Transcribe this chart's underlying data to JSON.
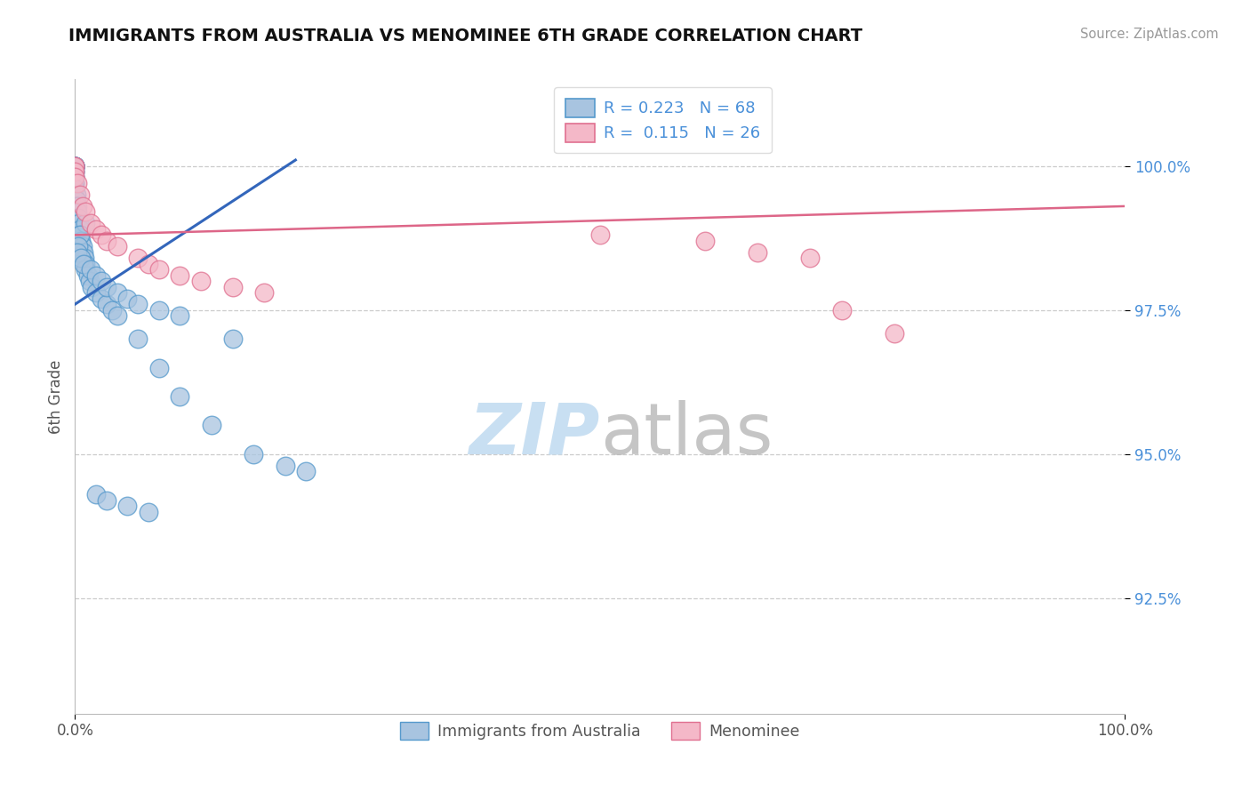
{
  "title": "IMMIGRANTS FROM AUSTRALIA VS MENOMINEE 6TH GRADE CORRELATION CHART",
  "source": "Source: ZipAtlas.com",
  "ylabel": "6th Grade",
  "yaxis_ticks": [
    "100.0%",
    "97.5%",
    "95.0%",
    "92.5%"
  ],
  "yaxis_values": [
    1.0,
    0.975,
    0.95,
    0.925
  ],
  "ylim_min": 0.905,
  "ylim_max": 1.015,
  "xlim_min": 0.0,
  "xlim_max": 1.0,
  "legend_label1": "Immigrants from Australia",
  "legend_label2": "Menominee",
  "legend_r1": "R = 0.223",
  "legend_n1": "N = 68",
  "legend_r2": "R =  0.115",
  "legend_n2": "N = 26",
  "color_blue_fill": "#a8c4e0",
  "color_blue_edge": "#5599cc",
  "color_pink_fill": "#f4b8c8",
  "color_pink_edge": "#e07090",
  "color_line_blue": "#3366bb",
  "color_line_pink": "#dd6688",
  "blue_line_x0": 0.0,
  "blue_line_y0": 0.976,
  "blue_line_x1": 0.21,
  "blue_line_y1": 1.001,
  "pink_line_x0": 0.0,
  "pink_line_y0": 0.988,
  "pink_line_x1": 1.0,
  "pink_line_y1": 0.993,
  "blue_dots_x": [
    0.0,
    0.0,
    0.0,
    0.0,
    0.0,
    0.0,
    0.0,
    0.0,
    0.0,
    0.0,
    0.0,
    0.0,
    0.0,
    0.0,
    0.0,
    0.0,
    0.0,
    0.0,
    0.001,
    0.001,
    0.001,
    0.002,
    0.002,
    0.003,
    0.004,
    0.005,
    0.005,
    0.006,
    0.007,
    0.008,
    0.009,
    0.01,
    0.01,
    0.012,
    0.014,
    0.016,
    0.02,
    0.025,
    0.03,
    0.035,
    0.04,
    0.06,
    0.08,
    0.1,
    0.13,
    0.17,
    0.2,
    0.22,
    0.01,
    0.005,
    0.003,
    0.002,
    0.006,
    0.008,
    0.015,
    0.02,
    0.025,
    0.03,
    0.04,
    0.05,
    0.06,
    0.08,
    0.1,
    0.15,
    0.02,
    0.03,
    0.05,
    0.07
  ],
  "blue_dots_y": [
    1.0,
    1.0,
    1.0,
    1.0,
    1.0,
    1.0,
    1.0,
    1.0,
    1.0,
    1.0,
    1.0,
    0.999,
    0.999,
    0.998,
    0.998,
    0.997,
    0.997,
    0.996,
    0.995,
    0.994,
    0.993,
    0.993,
    0.992,
    0.991,
    0.99,
    0.989,
    0.988,
    0.987,
    0.986,
    0.985,
    0.984,
    0.983,
    0.982,
    0.981,
    0.98,
    0.979,
    0.978,
    0.977,
    0.976,
    0.975,
    0.974,
    0.97,
    0.965,
    0.96,
    0.955,
    0.95,
    0.948,
    0.947,
    0.99,
    0.988,
    0.986,
    0.985,
    0.984,
    0.983,
    0.982,
    0.981,
    0.98,
    0.979,
    0.978,
    0.977,
    0.976,
    0.975,
    0.974,
    0.97,
    0.943,
    0.942,
    0.941,
    0.94
  ],
  "pink_dots_x": [
    0.0,
    0.0,
    0.0,
    0.0,
    0.002,
    0.005,
    0.007,
    0.01,
    0.015,
    0.02,
    0.025,
    0.03,
    0.04,
    0.06,
    0.07,
    0.08,
    0.1,
    0.12,
    0.15,
    0.18,
    0.5,
    0.6,
    0.65,
    0.7,
    0.73,
    0.78
  ],
  "pink_dots_y": [
    1.0,
    1.0,
    0.999,
    0.998,
    0.997,
    0.995,
    0.993,
    0.992,
    0.99,
    0.989,
    0.988,
    0.987,
    0.986,
    0.984,
    0.983,
    0.982,
    0.981,
    0.98,
    0.979,
    0.978,
    0.988,
    0.987,
    0.985,
    0.984,
    0.975,
    0.971
  ],
  "dot_size": 220,
  "watermark_zip_color": "#c8dff2",
  "watermark_atlas_color": "#bbbbbb"
}
